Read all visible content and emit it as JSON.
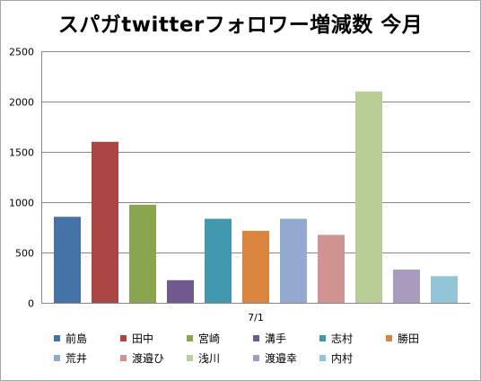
{
  "chart_data": {
    "type": "bar",
    "title": "スパガtwitterフォロワー増減数 今月",
    "categories": [
      "7/1"
    ],
    "series": [
      {
        "name": "前島",
        "values": [
          855
        ],
        "color": "#4572a7"
      },
      {
        "name": "田中",
        "values": [
          1600
        ],
        "color": "#aa4643"
      },
      {
        "name": "宮崎",
        "values": [
          975
        ],
        "color": "#89a54e"
      },
      {
        "name": "溝手",
        "values": [
          225
        ],
        "color": "#71588f"
      },
      {
        "name": "志村",
        "values": [
          835
        ],
        "color": "#4198af"
      },
      {
        "name": "勝田",
        "values": [
          715
        ],
        "color": "#db843d"
      },
      {
        "name": "荒井",
        "values": [
          835
        ],
        "color": "#93a9cf"
      },
      {
        "name": "渡邉ひ",
        "values": [
          675
        ],
        "color": "#d19392"
      },
      {
        "name": "浅川",
        "values": [
          2100
        ],
        "color": "#b9cd96"
      },
      {
        "name": "渡邉幸",
        "values": [
          330
        ],
        "color": "#a99bbd"
      },
      {
        "name": "内村",
        "values": [
          265
        ],
        "color": "#92c5d5"
      }
    ],
    "ylim": [
      0,
      2500
    ],
    "yticks": [
      "0",
      "500",
      "1000",
      "1500",
      "2000",
      "2500"
    ],
    "grid": true,
    "legend_position": "bottom"
  }
}
